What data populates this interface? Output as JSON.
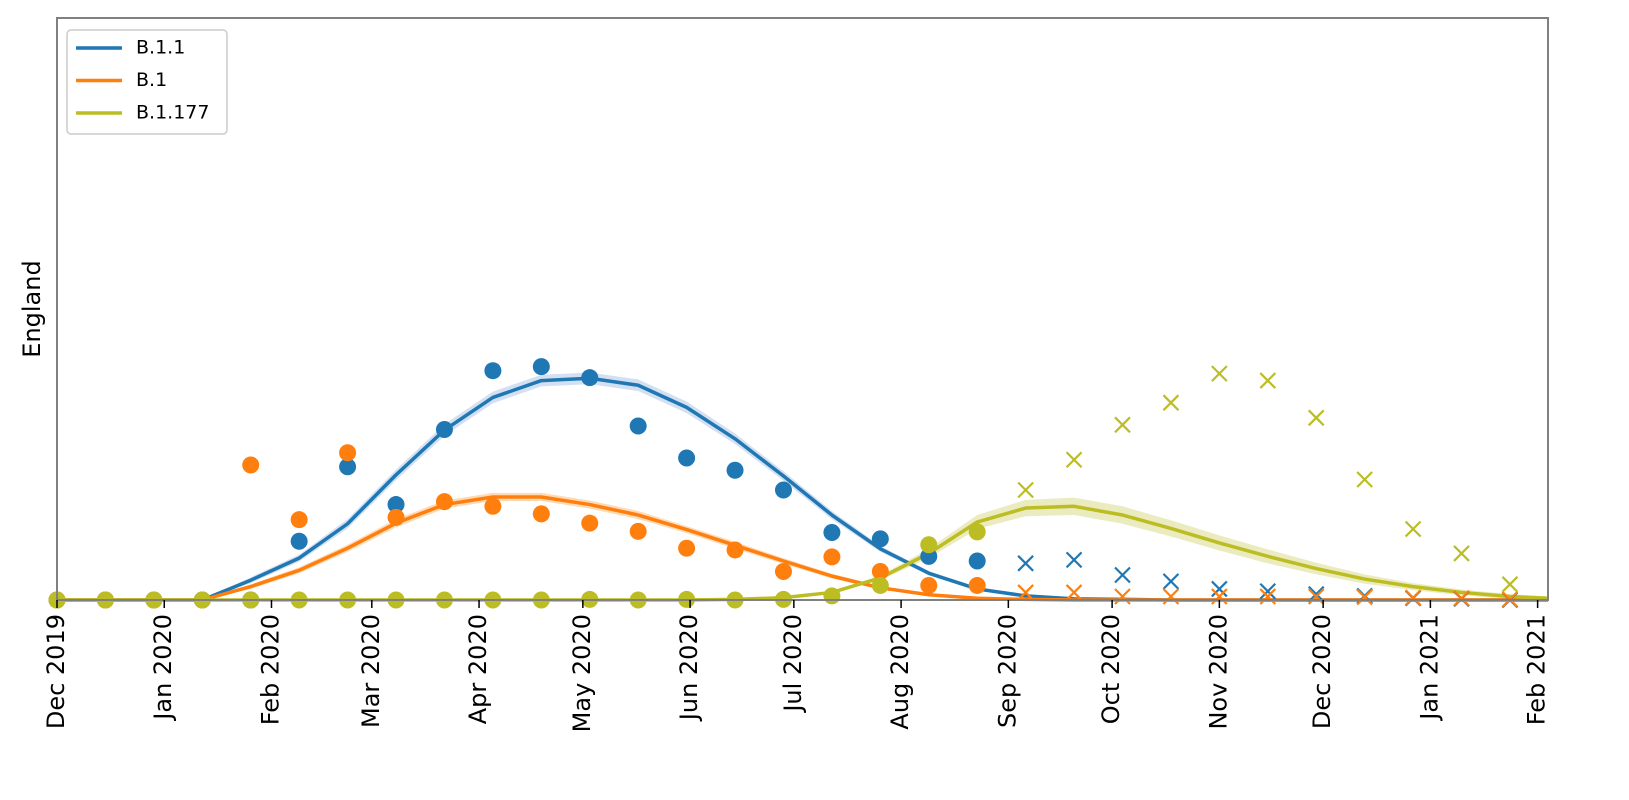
{
  "chart_data": {
    "type": "line",
    "title": "",
    "xlabel": "",
    "ylabel": "England",
    "x_ticks": [
      "Dec 2019",
      "Jan 2020",
      "Feb 2020",
      "Mar 2020",
      "Apr 2020",
      "May 2020",
      "Jun 2020",
      "Jul 2020",
      "Aug 2020",
      "Sep 2020",
      "Oct 2020",
      "Nov 2020",
      "Dec 2020",
      "Jan 2021",
      "Feb 2021"
    ],
    "xlim": [
      "2019-12-01",
      "2021-02-04"
    ],
    "ylim": [
      0,
      1
    ],
    "y_ticks_shown": false,
    "grid": false,
    "legend": "top-left",
    "series": [
      {
        "name": "B.1.1",
        "color": "#1f77b4",
        "band_color": "#aec7e8",
        "fit": {
          "x": [
            "2019-12-01",
            "2019-12-15",
            "2019-12-29",
            "2020-01-12",
            "2020-01-26",
            "2020-02-09",
            "2020-02-23",
            "2020-03-08",
            "2020-03-22",
            "2020-04-05",
            "2020-04-19",
            "2020-05-03",
            "2020-05-17",
            "2020-05-31",
            "2020-06-14",
            "2020-06-28",
            "2020-07-12",
            "2020-07-26",
            "2020-08-09",
            "2020-08-23",
            "2020-09-06",
            "2020-09-20",
            "2020-10-04",
            "2020-10-18",
            "2020-11-01",
            "2020-11-15",
            "2020-11-29",
            "2020-12-13",
            "2020-12-27",
            "2021-01-10",
            "2021-01-24",
            "2021-02-04"
          ],
          "y": [
            0,
            0,
            0,
            0,
            0.034,
            0.072,
            0.131,
            0.215,
            0.292,
            0.348,
            0.377,
            0.381,
            0.369,
            0.331,
            0.277,
            0.213,
            0.146,
            0.088,
            0.046,
            0.019,
            0.007,
            0.002,
            0.001,
            0,
            0,
            0,
            0,
            0,
            0,
            0,
            0,
            0
          ],
          "band": [
            0,
            0,
            0,
            0,
            0.005,
            0.006,
            0.008,
            0.009,
            0.01,
            0.01,
            0.01,
            0.01,
            0.01,
            0.01,
            0.009,
            0.008,
            0.007,
            0.005,
            0.004,
            0.003,
            0.002,
            0.001,
            0,
            0,
            0,
            0,
            0,
            0,
            0,
            0,
            0,
            0
          ]
        },
        "observed": {
          "x": [
            "2019-12-01",
            "2019-12-15",
            "2019-12-29",
            "2020-01-12",
            "2020-01-26",
            "2020-02-09",
            "2020-02-23",
            "2020-03-08",
            "2020-03-22",
            "2020-04-05",
            "2020-04-19",
            "2020-05-03",
            "2020-05-17",
            "2020-05-31",
            "2020-06-14",
            "2020-06-28",
            "2020-07-12",
            "2020-07-26",
            "2020-08-09",
            "2020-08-23"
          ],
          "y": [
            0,
            0,
            0,
            0,
            0,
            0.101,
            0.229,
            0.164,
            0.293,
            0.394,
            0.401,
            0.382,
            0.299,
            0.244,
            0.223,
            0.189,
            0.116,
            0.105,
            0.075,
            0.067
          ]
        },
        "held_out": {
          "x": [
            "2020-09-06",
            "2020-09-20",
            "2020-10-04",
            "2020-10-18",
            "2020-11-01",
            "2020-11-15",
            "2020-11-29",
            "2020-12-13",
            "2020-12-27",
            "2021-01-10",
            "2021-01-24"
          ],
          "y": [
            0.063,
            0.069,
            0.043,
            0.032,
            0.019,
            0.015,
            0.01,
            0.007,
            0.003,
            0.002,
            0
          ]
        }
      },
      {
        "name": "B.1",
        "color": "#ff7f0e",
        "band_color": "#ffbb78",
        "fit": {
          "x": [
            "2019-12-01",
            "2019-12-15",
            "2019-12-29",
            "2020-01-12",
            "2020-01-26",
            "2020-02-09",
            "2020-02-23",
            "2020-03-08",
            "2020-03-22",
            "2020-04-05",
            "2020-04-19",
            "2020-05-03",
            "2020-05-17",
            "2020-05-31",
            "2020-06-14",
            "2020-06-28",
            "2020-07-12",
            "2020-07-26",
            "2020-08-09",
            "2020-08-23",
            "2020-09-06",
            "2020-09-20",
            "2020-10-04",
            "2020-10-18",
            "2020-11-01",
            "2020-11-15",
            "2020-11-29",
            "2020-12-13",
            "2020-12-27",
            "2021-01-10",
            "2021-01-24",
            "2021-02-04"
          ],
          "y": [
            0,
            0,
            0,
            0,
            0.023,
            0.051,
            0.089,
            0.132,
            0.164,
            0.177,
            0.177,
            0.164,
            0.146,
            0.121,
            0.094,
            0.067,
            0.041,
            0.021,
            0.009,
            0.003,
            0.001,
            0,
            0,
            0,
            0,
            0,
            0,
            0,
            0,
            0,
            0,
            0
          ],
          "band": [
            0,
            0,
            0,
            0,
            0.004,
            0.005,
            0.006,
            0.007,
            0.007,
            0.007,
            0.007,
            0.007,
            0.007,
            0.006,
            0.006,
            0.005,
            0.004,
            0.003,
            0.002,
            0.001,
            0,
            0,
            0,
            0,
            0,
            0,
            0,
            0,
            0,
            0,
            0,
            0
          ]
        },
        "observed": {
          "x": [
            "2019-12-01",
            "2019-12-15",
            "2019-12-29",
            "2020-01-12",
            "2020-01-26",
            "2020-02-09",
            "2020-02-23",
            "2020-03-08",
            "2020-03-22",
            "2020-04-05",
            "2020-04-19",
            "2020-05-03",
            "2020-05-17",
            "2020-05-31",
            "2020-06-14",
            "2020-06-28",
            "2020-07-12",
            "2020-07-26",
            "2020-08-09",
            "2020-08-23"
          ],
          "y": [
            0,
            0,
            0,
            0,
            0.232,
            0.138,
            0.253,
            0.142,
            0.169,
            0.161,
            0.148,
            0.132,
            0.118,
            0.089,
            0.086,
            0.049,
            0.074,
            0.049,
            0.025,
            0.025
          ]
        },
        "held_out": {
          "x": [
            "2020-09-06",
            "2020-09-20",
            "2020-10-04",
            "2020-10-18",
            "2020-11-01",
            "2020-11-15",
            "2020-11-29",
            "2020-12-13",
            "2020-12-27",
            "2021-01-10",
            "2021-01-24"
          ],
          "y": [
            0.013,
            0.013,
            0.006,
            0.006,
            0.006,
            0.006,
            0.006,
            0.005,
            0.004,
            0.003,
            0.001
          ]
        }
      },
      {
        "name": "B.1.177",
        "color": "#bcbd22",
        "band_color": "#dbdb8d",
        "fit": {
          "x": [
            "2019-12-01",
            "2019-12-15",
            "2019-12-29",
            "2020-01-12",
            "2020-01-26",
            "2020-02-09",
            "2020-02-23",
            "2020-03-08",
            "2020-03-22",
            "2020-04-05",
            "2020-04-19",
            "2020-05-03",
            "2020-05-17",
            "2020-05-31",
            "2020-06-14",
            "2020-06-28",
            "2020-07-12",
            "2020-07-26",
            "2020-08-09",
            "2020-08-23",
            "2020-09-06",
            "2020-09-20",
            "2020-10-04",
            "2020-10-18",
            "2020-11-01",
            "2020-11-15",
            "2020-11-29",
            "2020-12-13",
            "2020-12-27",
            "2021-01-10",
            "2021-01-24",
            "2021-02-04"
          ],
          "y": [
            0,
            0,
            0,
            0,
            0,
            0,
            0,
            0,
            0,
            0,
            0,
            0,
            0,
            0,
            0.001,
            0.004,
            0.013,
            0.038,
            0.08,
            0.134,
            0.158,
            0.161,
            0.146,
            0.123,
            0.098,
            0.075,
            0.054,
            0.036,
            0.023,
            0.013,
            0.006,
            0.003
          ],
          "band": [
            0,
            0,
            0,
            0,
            0,
            0,
            0,
            0,
            0,
            0,
            0,
            0,
            0,
            0,
            0,
            0.001,
            0.002,
            0.004,
            0.008,
            0.012,
            0.014,
            0.015,
            0.015,
            0.014,
            0.013,
            0.012,
            0.01,
            0.008,
            0.006,
            0.005,
            0.004,
            0.003
          ]
        },
        "observed": {
          "x": [
            "2019-12-01",
            "2019-12-15",
            "2019-12-29",
            "2020-01-12",
            "2020-01-26",
            "2020-02-09",
            "2020-02-23",
            "2020-03-08",
            "2020-03-22",
            "2020-04-05",
            "2020-04-19",
            "2020-05-03",
            "2020-05-17",
            "2020-05-31",
            "2020-06-14",
            "2020-06-28",
            "2020-07-12",
            "2020-07-26",
            "2020-08-09",
            "2020-08-23"
          ],
          "y": [
            0,
            0,
            0,
            0,
            0,
            0,
            0,
            0,
            0,
            0,
            0,
            0.001,
            0,
            0.001,
            0,
            0.001,
            0.007,
            0.025,
            0.095,
            0.117
          ]
        },
        "held_out": {
          "x": [
            "2020-09-06",
            "2020-09-20",
            "2020-10-04",
            "2020-10-18",
            "2020-11-01",
            "2020-11-15",
            "2020-11-29",
            "2020-12-13",
            "2020-12-27",
            "2021-01-10",
            "2021-01-24"
          ],
          "y": [
            0.189,
            0.241,
            0.301,
            0.339,
            0.389,
            0.377,
            0.313,
            0.207,
            0.122,
            0.08,
            0.027
          ]
        }
      }
    ],
    "observed_marker": "circle",
    "held_out_marker": "x"
  }
}
